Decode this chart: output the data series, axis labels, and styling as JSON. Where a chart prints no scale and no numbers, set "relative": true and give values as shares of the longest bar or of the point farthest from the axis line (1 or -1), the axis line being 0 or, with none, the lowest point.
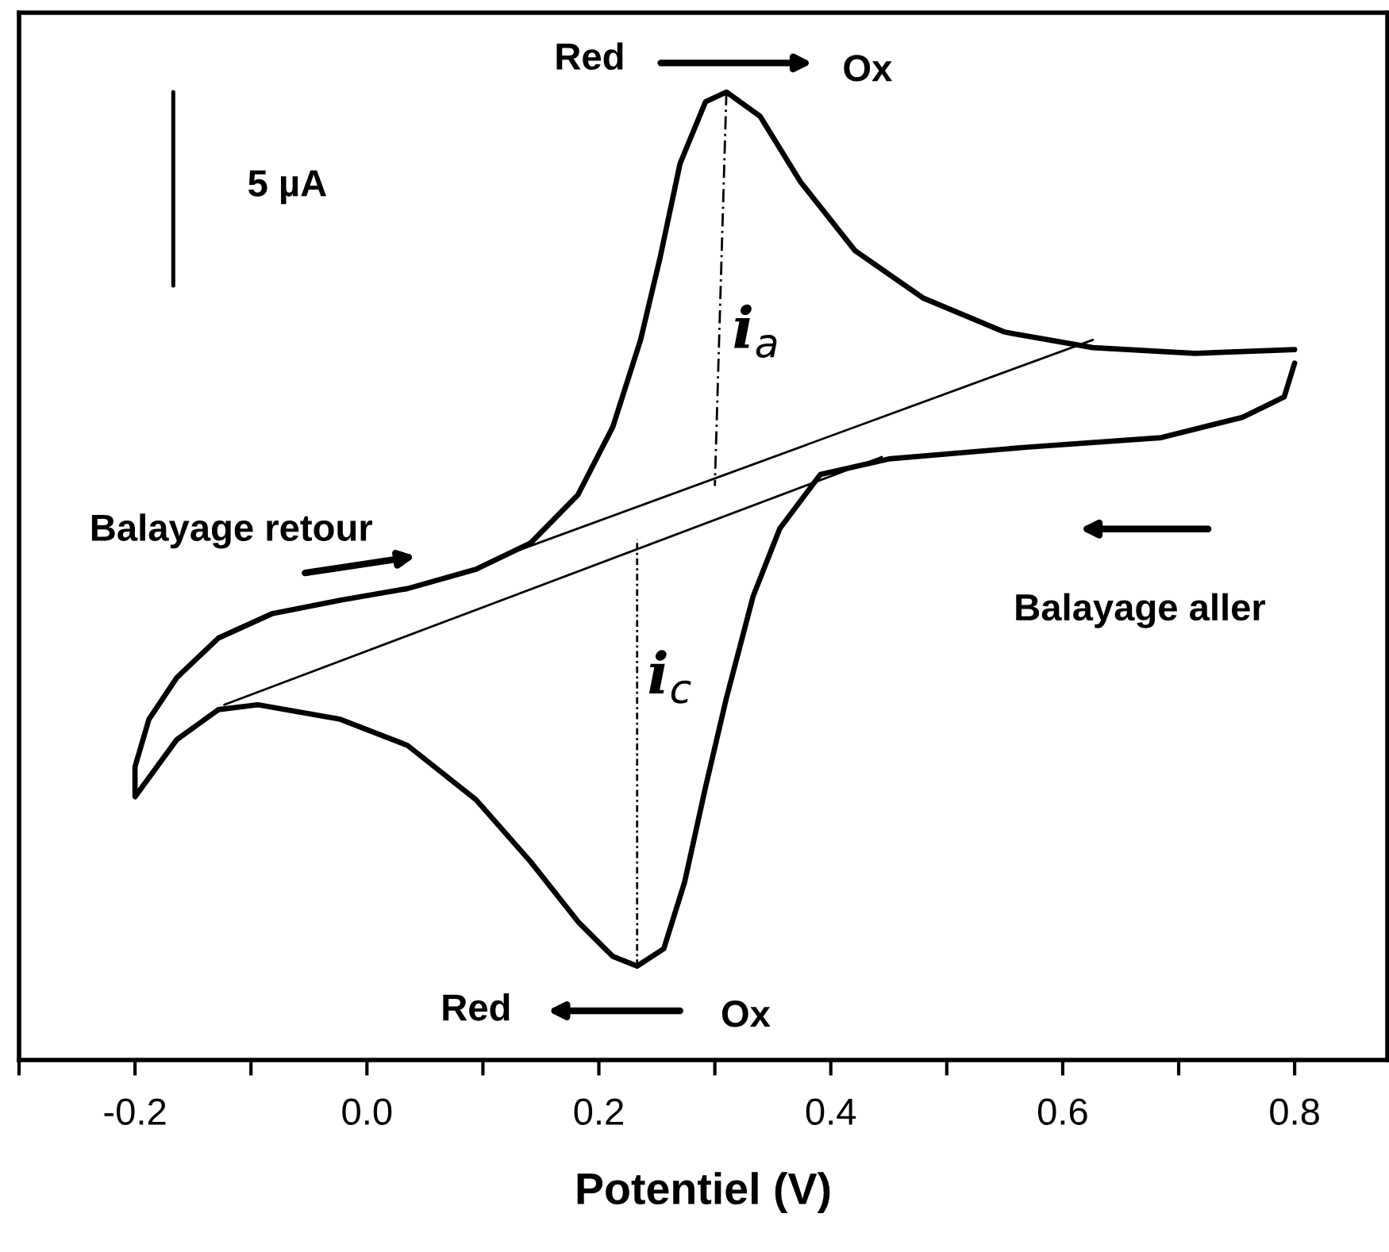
{
  "chart_data": {
    "type": "line",
    "relative": true,
    "xlabel": "Potentiel (V)",
    "xlim": [
      -0.3,
      0.88
    ],
    "xticks": [
      {
        "value": -0.3,
        "label": null
      },
      -0.2,
      {
        "value": -0.1,
        "label": null
      },
      {
        "value": 0.0,
        "label": "0.0"
      },
      {
        "value": 0.1,
        "label": null
      },
      0.2,
      {
        "value": 0.3,
        "label": null
      },
      0.4,
      {
        "value": 0.5,
        "label": null
      },
      0.6,
      {
        "value": 0.7,
        "label": null
      },
      0.8
    ],
    "tick_labels": "x",
    "grid": false,
    "marker": "none",
    "series": [
      {
        "color": "#000000",
        "line_style": "solid",
        "x": [
          0.8,
          0.791,
          0.755,
          0.685,
          0.568,
          0.45,
          0.391,
          0.356,
          0.333,
          0.31,
          0.292,
          0.274,
          0.256,
          0.233,
          0.212,
          0.182,
          0.141,
          0.094,
          0.035,
          -0.023,
          -0.094,
          -0.128,
          -0.164,
          -0.2,
          -0.2,
          -0.188,
          -0.164,
          -0.128,
          -0.082,
          -0.023,
          0.035,
          0.094,
          0.141,
          0.182,
          0.212,
          0.236,
          0.253,
          0.27,
          0.292,
          0.31,
          0.339,
          0.374,
          0.421,
          0.48,
          0.55,
          0.626,
          0.714,
          0.8
        ],
        "values": [
          0.72,
          0.685,
          0.664,
          0.643,
          0.633,
          0.621,
          0.605,
          0.549,
          0.479,
          0.374,
          0.282,
          0.184,
          0.115,
          0.097,
          0.107,
          0.143,
          0.205,
          0.269,
          0.325,
          0.352,
          0.367,
          0.362,
          0.331,
          0.272,
          0.303,
          0.352,
          0.395,
          0.436,
          0.461,
          0.475,
          0.487,
          0.507,
          0.534,
          0.584,
          0.654,
          0.744,
          0.83,
          0.926,
          0.99,
          1.0,
          0.975,
          0.907,
          0.836,
          0.787,
          0.752,
          0.736,
          0.73,
          0.734
        ]
      },
      {
        "color": "#000000",
        "line_style": "solid",
        "x": [
          -0.123,
          0.444
        ],
        "values": [
          0.367,
          0.623
        ]
      },
      {
        "color": "#000000",
        "line_style": "solid",
        "x": [
          0.118,
          0.626
        ],
        "values": [
          0.521,
          0.744
        ]
      },
      {
        "color": "#000000",
        "line_style": "dashed",
        "x": [
          0.31,
          0.3
        ],
        "values": [
          1.0,
          0.593
        ]
      },
      {
        "color": "#000000",
        "line_style": "dotted",
        "x": [
          0.233,
          0.233
        ],
        "values": [
          0.097,
          0.538
        ]
      },
      {
        "color": "#000000",
        "line_style": "solid",
        "x": [
          -0.167,
          -0.167
        ],
        "values": [
          1.0,
          0.8
        ]
      }
    ],
    "annotations": [
      "Red",
      "Ox",
      "Red",
      "Ox",
      "i$_{a}$",
      "i$_{c}$",
      "Balayage retour",
      "Balayage aller",
      "5 µA"
    ]
  }
}
